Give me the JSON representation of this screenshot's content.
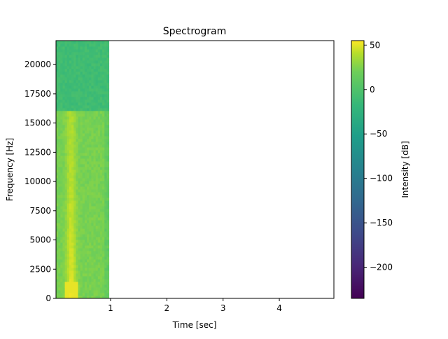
{
  "chart_data": {
    "type": "heatmap",
    "title": "Spectrogram",
    "xlabel": "Time [sec]",
    "ylabel": "Frequency [Hz]",
    "xlim": [
      0.03,
      4.97
    ],
    "ylim": [
      0,
      22050
    ],
    "x_ticks": [
      1,
      2,
      3,
      4
    ],
    "x_tick_labels": [
      "1",
      "2",
      "3",
      "4"
    ],
    "y_ticks": [
      0,
      2500,
      5000,
      7500,
      10000,
      12500,
      15000,
      17500,
      20000
    ],
    "y_tick_labels": [
      "0",
      "2500",
      "5000",
      "7500",
      "10000",
      "12500",
      "15000",
      "17500",
      "20000"
    ],
    "data_extent": {
      "time_start": 0.03,
      "time_end": 0.97,
      "freq_start": 0,
      "freq_end": 22050
    },
    "colormap": "viridis",
    "colorbar": {
      "label": "Intensity [dB]",
      "range": [
        -235,
        55
      ],
      "ticks": [
        50,
        0,
        -50,
        -100,
        -150,
        -200
      ],
      "tick_labels": [
        "50",
        "0",
        "−50",
        "−100",
        "−150",
        "−200"
      ]
    },
    "intensity_profile": {
      "description_values_db": {
        "peak_low_freq_early_time": 50,
        "mid_band_body": 10,
        "upper_band_above_16000_hz": -35
      },
      "band_edge_hz": 16000,
      "peak_time_sec": 0.3
    },
    "grid": false,
    "legend": "none"
  }
}
